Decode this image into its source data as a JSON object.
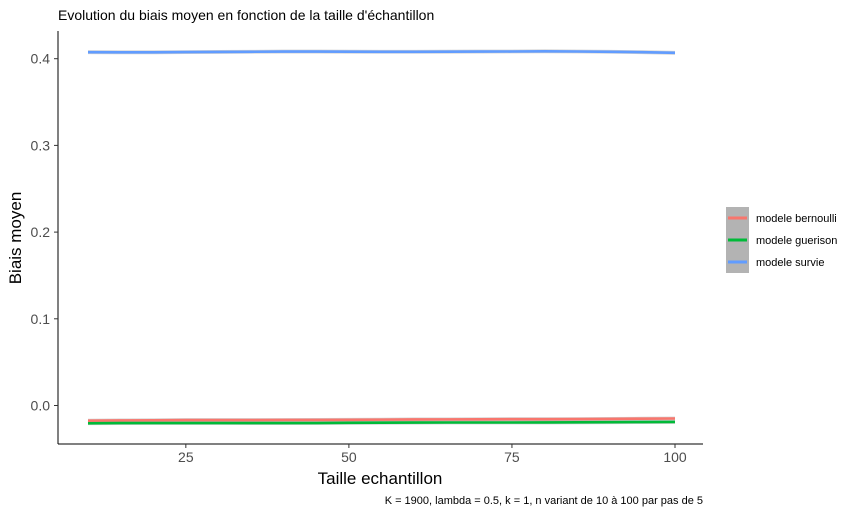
{
  "chart_data": {
    "type": "line",
    "title": "Evolution du biais moyen en fonction de la taille d'échantillon",
    "xlabel": "Taille echantillon",
    "ylabel": "Biais moyen",
    "caption": "K = 1900, lambda = 0.5, k = 1, n variant de 10 à 100 par pas de 5",
    "xlim": [
      10,
      100
    ],
    "ylim": [
      -0.03,
      0.42
    ],
    "xticks": [
      25,
      50,
      75,
      100
    ],
    "yticks": [
      0.0,
      0.1,
      0.2,
      0.3,
      0.4
    ],
    "ytick_labels": [
      "0.0",
      "0.1",
      "0.2",
      "0.3",
      "0.4"
    ],
    "grid": false,
    "legend_position": "right",
    "x": [
      10,
      15,
      20,
      25,
      30,
      35,
      40,
      45,
      50,
      55,
      60,
      65,
      70,
      75,
      80,
      85,
      90,
      95,
      100
    ],
    "series": [
      {
        "name": "modele bernoulli",
        "color": "#F8766D",
        "values": [
          -0.0175,
          -0.0172,
          -0.017,
          -0.0168,
          -0.0168,
          -0.0168,
          -0.0167,
          -0.0166,
          -0.0165,
          -0.0163,
          -0.0161,
          -0.016,
          -0.0159,
          -0.0158,
          -0.0158,
          -0.0157,
          -0.0155,
          -0.0152,
          -0.015
        ]
      },
      {
        "name": "modele guerison",
        "color": "#00BA38",
        "values": [
          -0.0205,
          -0.0203,
          -0.0202,
          -0.0202,
          -0.0202,
          -0.0203,
          -0.0203,
          -0.0202,
          -0.02,
          -0.0198,
          -0.0197,
          -0.0196,
          -0.0196,
          -0.0196,
          -0.0195,
          -0.0194,
          -0.0193,
          -0.0191,
          -0.019
        ]
      },
      {
        "name": "modele survie",
        "color": "#619CFF",
        "values": [
          0.4075,
          0.4074,
          0.4074,
          0.4076,
          0.4078,
          0.408,
          0.4082,
          0.4082,
          0.4081,
          0.408,
          0.408,
          0.4081,
          0.4082,
          0.4083,
          0.4085,
          0.4083,
          0.408,
          0.4075,
          0.4068
        ]
      }
    ],
    "confidence_band_color": "#999999"
  }
}
